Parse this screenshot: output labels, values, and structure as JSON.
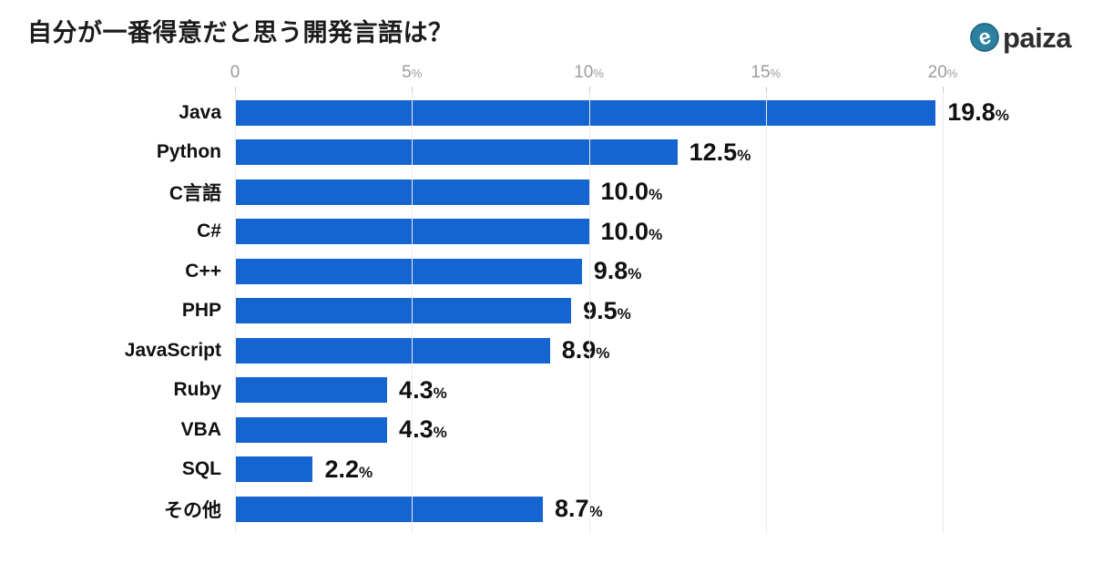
{
  "header": {
    "title": "自分が一番得意だと思う開発言語は？",
    "logo_text": "paiza"
  },
  "chart_data": {
    "type": "bar",
    "orientation": "horizontal",
    "title": "自分が一番得意だと思う開発言語は？",
    "categories": [
      "Java",
      "Python",
      "C言語",
      "C#",
      "C++",
      "PHP",
      "JavaScript",
      "Ruby",
      "VBA",
      "SQL",
      "その他"
    ],
    "values": [
      19.8,
      12.5,
      10.0,
      10.0,
      9.8,
      9.5,
      8.9,
      4.3,
      4.3,
      2.2,
      8.7
    ],
    "value_labels": [
      "19.8",
      "12.5",
      "10.0",
      "10.0",
      "9.8",
      "9.5",
      "8.9",
      "4.3",
      "4.3",
      "2.2",
      "8.7"
    ],
    "value_suffix": "%",
    "x_ticks": [
      0,
      5,
      10,
      15,
      20
    ],
    "tick_suffix": "%",
    "xlim": [
      0,
      20
    ],
    "grid": true,
    "legend": false,
    "bar_color": "#1565d1"
  },
  "colors": {
    "bar": "#1565d1",
    "gridline": "#ececec",
    "tick_mark": "#c9c9c9",
    "axis_text": "#9b9b9b",
    "label_text": "#111111",
    "title_text": "#1c1c1e",
    "logo_teal": "#2b80a0"
  }
}
